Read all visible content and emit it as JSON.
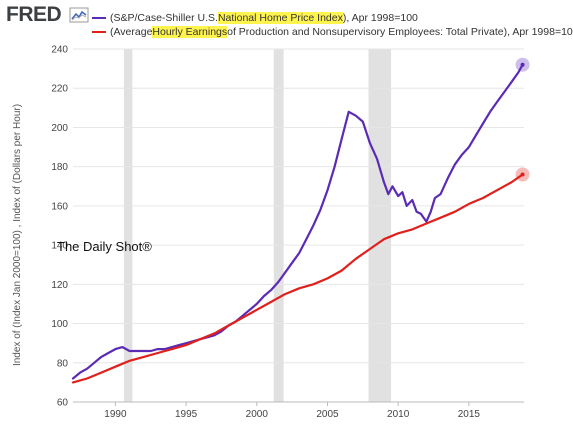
{
  "header": {
    "logo_text": "FRED",
    "logo_icon": "chart-line-icon"
  },
  "legend": [
    {
      "color": "#5b2bb5",
      "pre": "(S&P/Case-Shiller U.S. ",
      "highlight": "National Home Price Index",
      "post": "), Apr 1998=100"
    },
    {
      "color": "#e0201b",
      "pre": "(Average ",
      "highlight": "Hourly Earnings",
      "post": " of Production and Nonsupervisory Employees: Total Private), Apr 1998=10"
    }
  ],
  "watermark": "The Daily Shot®",
  "chart_data": {
    "type": "line",
    "title": "",
    "xlabel": "",
    "ylabel": "Index of (Index Jan 2000=100) , Index of (Dollars per Hour)",
    "xlim": [
      1987,
      2018.9
    ],
    "ylim": [
      60,
      240
    ],
    "x_ticks": [
      1990,
      1995,
      2000,
      2005,
      2010,
      2015
    ],
    "y_ticks": [
      60,
      80,
      100,
      120,
      140,
      160,
      180,
      200,
      220,
      240
    ],
    "grid": true,
    "recessions": [
      [
        1990.6,
        1991.2
      ],
      [
        2001.2,
        2001.9
      ],
      [
        2007.9,
        2009.5
      ]
    ],
    "series": [
      {
        "name": "S&P/Case-Shiller U.S. National Home Price Index",
        "color": "#5b2bb5",
        "x": [
          1987.0,
          1987.5,
          1988.0,
          1988.5,
          1989.0,
          1989.5,
          1990.0,
          1990.5,
          1991.0,
          1991.5,
          1992.0,
          1992.5,
          1993.0,
          1993.5,
          1994.0,
          1994.5,
          1995.0,
          1995.5,
          1996.0,
          1996.5,
          1997.0,
          1997.5,
          1998.0,
          1998.5,
          1999.0,
          1999.5,
          2000.0,
          2000.5,
          2001.0,
          2001.5,
          2002.0,
          2002.5,
          2003.0,
          2003.5,
          2004.0,
          2004.5,
          2005.0,
          2005.5,
          2006.0,
          2006.5,
          2007.0,
          2007.5,
          2008.0,
          2008.5,
          2009.0,
          2009.3,
          2009.6,
          2010.0,
          2010.3,
          2010.6,
          2011.0,
          2011.3,
          2011.6,
          2012.0,
          2012.3,
          2012.6,
          2013.0,
          2013.5,
          2014.0,
          2014.5,
          2015.0,
          2015.5,
          2016.0,
          2016.5,
          2017.0,
          2017.5,
          2018.0,
          2018.5,
          2018.8
        ],
        "values": [
          72,
          75,
          77,
          80,
          83,
          85,
          87,
          88,
          86,
          86,
          86,
          86,
          87,
          87,
          88,
          89,
          90,
          91,
          92,
          93,
          94,
          96,
          99,
          101,
          104,
          107,
          110,
          114,
          117,
          121,
          126,
          131,
          136,
          143,
          150,
          158,
          168,
          180,
          194,
          208,
          206,
          203,
          192,
          184,
          172,
          166,
          170,
          165,
          167,
          160,
          163,
          157,
          156,
          152,
          157,
          164,
          166,
          174,
          181,
          186,
          190,
          196,
          202,
          208,
          213,
          218,
          223,
          228,
          232
        ]
      },
      {
        "name": "Average Hourly Earnings of Production and Nonsupervisory Employees: Total Private",
        "color": "#e0201b",
        "x": [
          1987.0,
          1988.0,
          1989.0,
          1990.0,
          1991.0,
          1992.0,
          1993.0,
          1994.0,
          1995.0,
          1996.0,
          1997.0,
          1998.0,
          1999.0,
          2000.0,
          2001.0,
          2002.0,
          2003.0,
          2004.0,
          2005.0,
          2006.0,
          2007.0,
          2008.0,
          2009.0,
          2010.0,
          2011.0,
          2012.0,
          2013.0,
          2014.0,
          2015.0,
          2016.0,
          2017.0,
          2018.0,
          2018.8
        ],
        "values": [
          70,
          72,
          75,
          78,
          81,
          83,
          85,
          87,
          89,
          92,
          95,
          99,
          103,
          107,
          111,
          115,
          118,
          120,
          123,
          127,
          133,
          138,
          143,
          146,
          148,
          151,
          154,
          157,
          161,
          164,
          168,
          172,
          176
        ]
      }
    ]
  }
}
